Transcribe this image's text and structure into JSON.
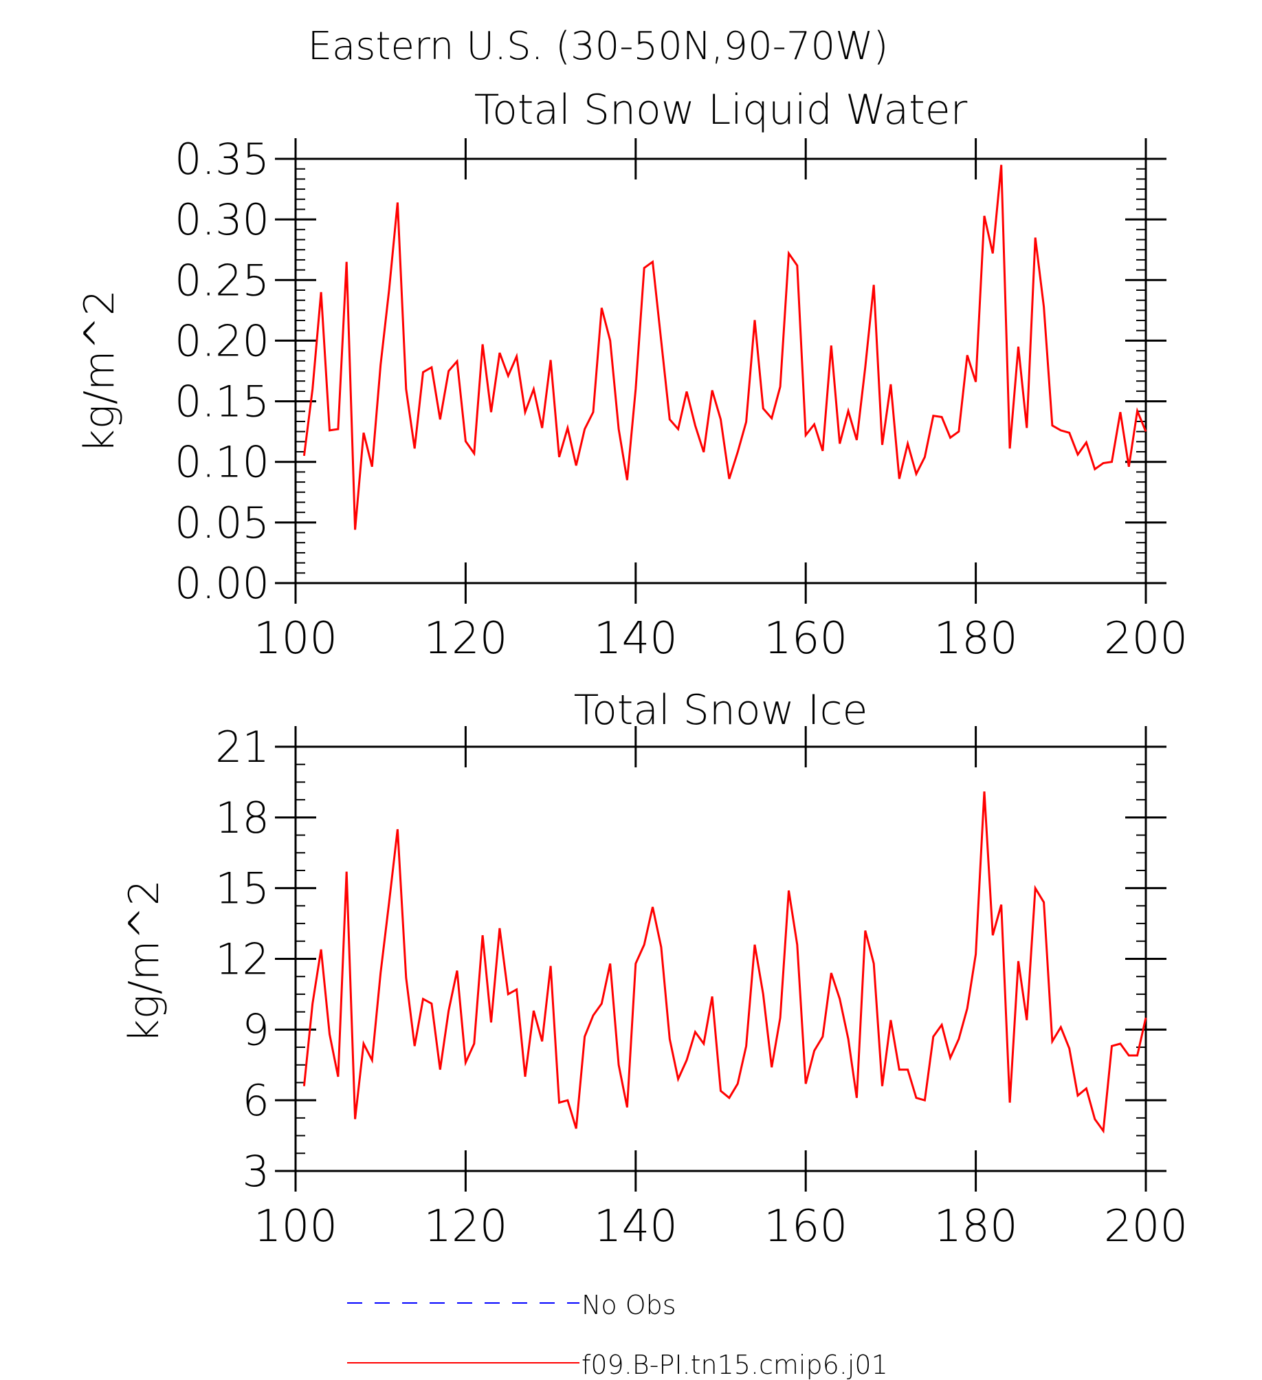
{
  "figure": {
    "title": "Eastern U.S. (30-50N,90-70W)"
  },
  "chart_data": [
    {
      "type": "line",
      "title": "Total Snow Liquid Water",
      "xlabel": "",
      "ylabel": "kg/m^2",
      "xlim": [
        100,
        200
      ],
      "ylim": [
        0.0,
        0.35
      ],
      "xticks": [
        100,
        120,
        140,
        160,
        180,
        200
      ],
      "xtick_labels": [
        "100",
        "120",
        "140",
        "160",
        "180",
        "200"
      ],
      "yticks": [
        0.0,
        0.05,
        0.1,
        0.15,
        0.2,
        0.25,
        0.3,
        0.35
      ],
      "ytick_labels": [
        "0.00",
        "0.05",
        "0.10",
        "0.15",
        "0.20",
        "0.25",
        "0.30",
        "0.35"
      ],
      "grid": false,
      "x": [
        101,
        102,
        103,
        104,
        105,
        106,
        107,
        108,
        109,
        110,
        111,
        112,
        113,
        114,
        115,
        116,
        117,
        118,
        119,
        120,
        121,
        122,
        123,
        124,
        125,
        126,
        127,
        128,
        129,
        130,
        131,
        132,
        133,
        134,
        135,
        136,
        137,
        138,
        139,
        140,
        141,
        142,
        143,
        144,
        145,
        146,
        147,
        148,
        149,
        150,
        151,
        152,
        153,
        154,
        155,
        156,
        157,
        158,
        159,
        160,
        161,
        162,
        163,
        164,
        165,
        166,
        167,
        168,
        169,
        170,
        171,
        172,
        173,
        174,
        175,
        176,
        177,
        178,
        179,
        180,
        181,
        182,
        183,
        184,
        185,
        186,
        187,
        188,
        189,
        190,
        191,
        192,
        193,
        194,
        195,
        196,
        197,
        198,
        199,
        200
      ],
      "series": [
        {
          "name": "f09.B-PI.tn15.cmip6.j01",
          "color": "#ff0000",
          "values": [
            0.105,
            0.16,
            0.24,
            0.126,
            0.127,
            0.265,
            0.044,
            0.124,
            0.096,
            0.18,
            0.242,
            0.314,
            0.16,
            0.111,
            0.174,
            0.178,
            0.135,
            0.175,
            0.183,
            0.117,
            0.107,
            0.197,
            0.141,
            0.19,
            0.171,
            0.187,
            0.141,
            0.16,
            0.128,
            0.184,
            0.104,
            0.128,
            0.097,
            0.127,
            0.141,
            0.227,
            0.2,
            0.127,
            0.085,
            0.16,
            0.26,
            0.265,
            0.2,
            0.135,
            0.127,
            0.158,
            0.13,
            0.108,
            0.159,
            0.135,
            0.086,
            0.108,
            0.133,
            0.217,
            0.144,
            0.136,
            0.162,
            0.272,
            0.262,
            0.122,
            0.131,
            0.109,
            0.196,
            0.115,
            0.142,
            0.118,
            0.178,
            0.246,
            0.114,
            0.164,
            0.086,
            0.115,
            0.09,
            0.104,
            0.138,
            0.137,
            0.12,
            0.125,
            0.188,
            0.166,
            0.303,
            0.272,
            0.345,
            0.111,
            0.195,
            0.128,
            0.285,
            0.228,
            0.13,
            0.126,
            0.124,
            0.106,
            0.116,
            0.094,
            0.099,
            0.1,
            0.141,
            0.096,
            0.142,
            0.125
          ]
        }
      ]
    },
    {
      "type": "line",
      "title": "Total Snow Ice",
      "xlabel": "",
      "ylabel": "kg/m^2",
      "xlim": [
        100,
        200
      ],
      "ylim": [
        3,
        21
      ],
      "xticks": [
        100,
        120,
        140,
        160,
        180,
        200
      ],
      "xtick_labels": [
        "100",
        "120",
        "140",
        "160",
        "180",
        "200"
      ],
      "yticks": [
        3,
        6,
        9,
        12,
        15,
        18,
        21
      ],
      "ytick_labels": [
        "3",
        "6",
        "9",
        "12",
        "15",
        "18",
        "21"
      ],
      "grid": false,
      "x": [
        101,
        102,
        103,
        104,
        105,
        106,
        107,
        108,
        109,
        110,
        111,
        112,
        113,
        114,
        115,
        116,
        117,
        118,
        119,
        120,
        121,
        122,
        123,
        124,
        125,
        126,
        127,
        128,
        129,
        130,
        131,
        132,
        133,
        134,
        135,
        136,
        137,
        138,
        139,
        140,
        141,
        142,
        143,
        144,
        145,
        146,
        147,
        148,
        149,
        150,
        151,
        152,
        153,
        154,
        155,
        156,
        157,
        158,
        159,
        160,
        161,
        162,
        163,
        164,
        165,
        166,
        167,
        168,
        169,
        170,
        171,
        172,
        173,
        174,
        175,
        176,
        177,
        178,
        179,
        180,
        181,
        182,
        183,
        184,
        185,
        186,
        187,
        188,
        189,
        190,
        191,
        192,
        193,
        194,
        195,
        196,
        197,
        198,
        199,
        200
      ],
      "series": [
        {
          "name": "f09.B-PI.tn15.cmip6.j01",
          "color": "#ff0000",
          "values": [
            6.6,
            10.1,
            12.4,
            8.8,
            7.0,
            15.7,
            5.2,
            8.4,
            7.7,
            11.4,
            14.4,
            17.5,
            11.2,
            8.3,
            10.3,
            10.1,
            7.3,
            9.8,
            11.5,
            7.6,
            8.4,
            13.0,
            9.3,
            13.3,
            10.5,
            10.7,
            7.0,
            9.8,
            8.5,
            11.7,
            5.9,
            6.0,
            4.8,
            8.7,
            9.6,
            10.1,
            11.8,
            7.5,
            5.7,
            11.8,
            12.6,
            14.2,
            12.5,
            8.6,
            6.9,
            7.7,
            8.9,
            8.4,
            10.4,
            6.4,
            6.1,
            6.7,
            8.3,
            12.6,
            10.5,
            7.4,
            9.5,
            14.9,
            12.6,
            6.7,
            8.1,
            8.7,
            11.4,
            10.3,
            8.6,
            6.1,
            13.2,
            11.8,
            6.6,
            9.4,
            7.3,
            7.3,
            6.1,
            6.0,
            8.7,
            9.2,
            7.8,
            8.6,
            9.9,
            12.2,
            19.1,
            13.0,
            14.3,
            5.9,
            11.9,
            9.4,
            15.0,
            14.4,
            8.5,
            9.1,
            8.2,
            6.2,
            6.5,
            5.2,
            4.7,
            8.3,
            8.4,
            7.9,
            7.9,
            9.5
          ]
        }
      ]
    }
  ],
  "legend": [
    {
      "label": "No Obs",
      "color": "#0000ff",
      "style": "dashed"
    },
    {
      "label": "f09.B-PI.tn15.cmip6.j01",
      "color": "#ff0000",
      "style": "solid"
    }
  ]
}
